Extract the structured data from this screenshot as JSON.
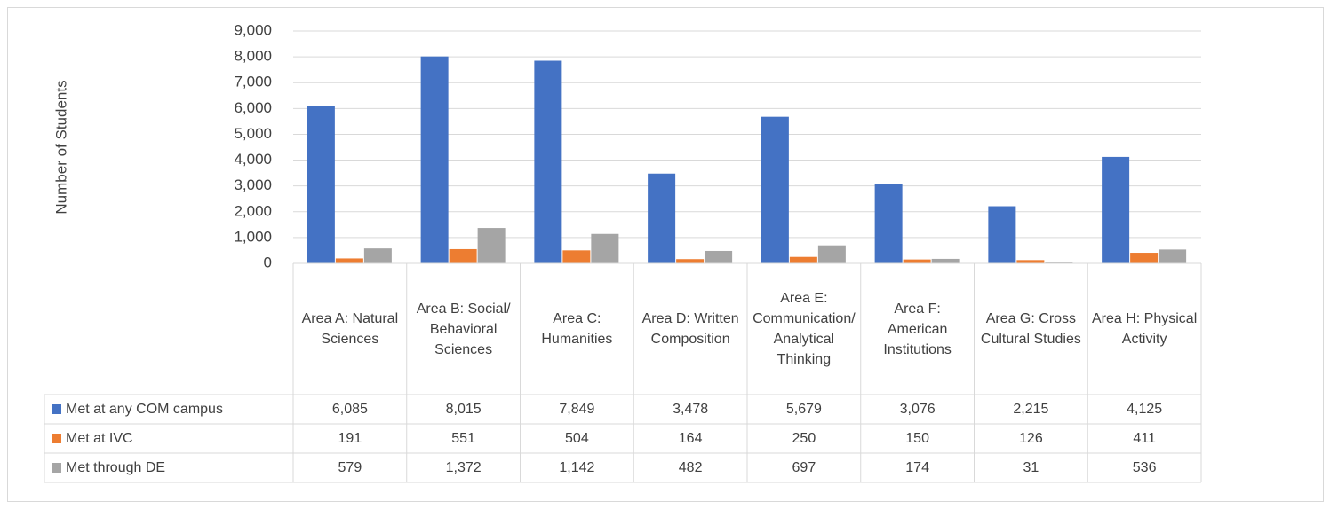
{
  "chart_data": {
    "type": "bar",
    "y_axis_label": "Number of Students",
    "categories": [
      "Area A: Natural Sciences",
      "Area B: Social/ Behavioral Sciences",
      "Area C: Humanities",
      "Area D: Written Composition",
      "Area E: Communication/ Analytical Thinking",
      "Area F: American Institutions",
      "Area G: Cross Cultural Studies",
      "Area H: Physical Activity"
    ],
    "series": [
      {
        "name": "Met at any COM campus",
        "color": "#4472c4",
        "values": [
          6085,
          8015,
          7849,
          3478,
          5679,
          3076,
          2215,
          4125
        ],
        "value_labels": [
          "6,085",
          "8,015",
          "7,849",
          "3,478",
          "5,679",
          "3,076",
          "2,215",
          "4,125"
        ]
      },
      {
        "name": "Met at IVC",
        "color": "#ed7d31",
        "values": [
          191,
          551,
          504,
          164,
          250,
          150,
          126,
          411
        ],
        "value_labels": [
          "191",
          "551",
          "504",
          "164",
          "250",
          "150",
          "126",
          "411"
        ]
      },
      {
        "name": "Met through DE",
        "color": "#a5a5a5",
        "values": [
          579,
          1372,
          1142,
          482,
          697,
          174,
          31,
          536
        ],
        "value_labels": [
          "579",
          "1,372",
          "1,142",
          "482",
          "697",
          "174",
          "31",
          "536"
        ]
      }
    ],
    "ylim": [
      0,
      9000
    ],
    "yticks": [
      0,
      {
        "value": 1000,
        "label": "1,000"
      },
      {
        "value": 2000,
        "label": "2,000"
      },
      {
        "value": 3000,
        "label": "3,000"
      },
      {
        "value": 4000,
        "label": "4,000"
      },
      {
        "value": 5000,
        "label": "5,000"
      },
      {
        "value": 6000,
        "label": "6,000"
      },
      {
        "value": 7000,
        "label": "7,000"
      },
      {
        "value": 8000,
        "label": "8,000"
      },
      {
        "value": 9000,
        "label": "9,000"
      }
    ],
    "grid": true
  }
}
